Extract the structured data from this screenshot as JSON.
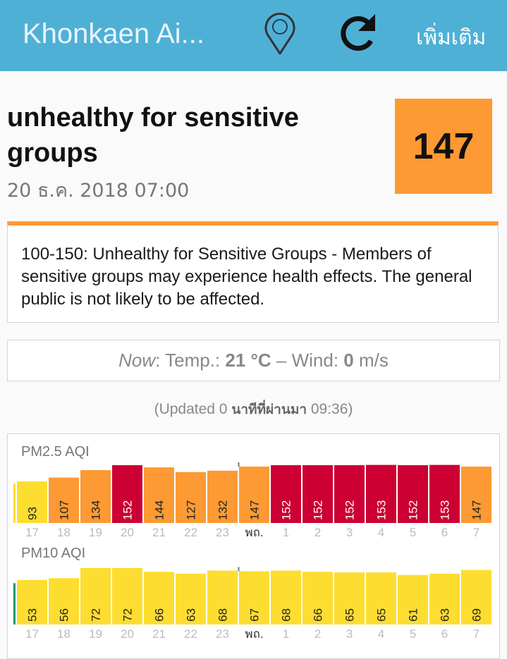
{
  "header": {
    "title": "Khonkaen Ai...",
    "more_label": "เพิ่มเติม",
    "location_icon": "map-pin-icon",
    "refresh_icon": "refresh-icon"
  },
  "status": {
    "title": "unhealthy for sensitive groups",
    "date": "20 ธ.ค. 2018 07:00",
    "aqi": "147",
    "color": "#fd9a33"
  },
  "description": "100-150: Unhealthy for Sensitive Groups - Members of sensitive groups may experience health effects. The general public is not likely to be affected.",
  "weather": {
    "now_label": "Now",
    "temp_label": ": Temp.: ",
    "temp_value": "21 °C",
    "sep": " – Wind: ",
    "wind_value": "0",
    "wind_unit": " m/s"
  },
  "updated": {
    "prefix": "(Updated 0 ",
    "thai": "นาทีที่ผ่านมา",
    "suffix": " 09:36)"
  },
  "colors": {
    "header": "#4fb0d6",
    "moderate": "#fddd30",
    "usg": "#fd9a33",
    "unhealthy": "#cc0033",
    "good": "#009966"
  },
  "chart_data": [
    {
      "type": "bar",
      "title": "PM2.5 AQI",
      "categories": [
        "17",
        "18",
        "19",
        "20",
        "21",
        "22",
        "23",
        "พถ.",
        "1",
        "2",
        "3",
        "4",
        "5",
        "6",
        "7"
      ],
      "values": [
        93,
        107,
        134,
        152,
        144,
        127,
        132,
        147,
        152,
        152,
        152,
        153,
        152,
        153,
        147
      ],
      "highlight_category": "พถ."
    },
    {
      "type": "bar",
      "title": "PM10 AQI",
      "categories": [
        "17",
        "18",
        "19",
        "20",
        "21",
        "22",
        "23",
        "พถ.",
        "1",
        "2",
        "3",
        "4",
        "5",
        "6",
        "7"
      ],
      "values": [
        53,
        56,
        72,
        72,
        66,
        63,
        68,
        67,
        68,
        66,
        65,
        65,
        61,
        63,
        69
      ],
      "highlight_category": "พถ."
    }
  ]
}
